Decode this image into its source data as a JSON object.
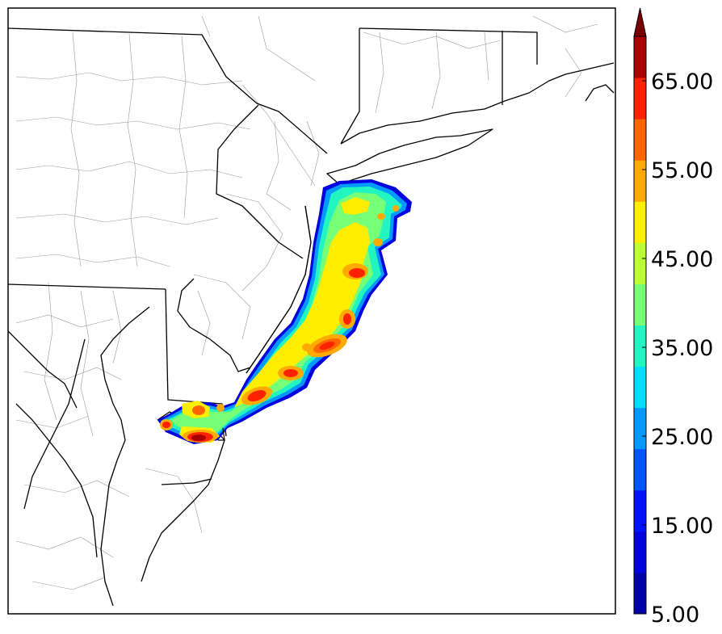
{
  "colorbar": {
    "min": 5.0,
    "max": 70.0,
    "step": 5.0,
    "extend": "max",
    "levels": [
      5,
      10,
      15,
      20,
      25,
      30,
      35,
      40,
      45,
      50,
      55,
      60,
      65,
      70
    ],
    "colors": [
      "#0000aa",
      "#0000dd",
      "#0011ff",
      "#0055ff",
      "#0099ff",
      "#00ddff",
      "#22f5c0",
      "#77ff77",
      "#bbff33",
      "#ffee00",
      "#ffaa00",
      "#ff6600",
      "#ff2200",
      "#aa0000"
    ],
    "extend_color": "#7a0000",
    "tick_labels": [
      "5.00",
      "15.00",
      "25.00",
      "35.00",
      "45.00",
      "55.00",
      "65.00"
    ],
    "tick_values": [
      5,
      15,
      25,
      35,
      45,
      55,
      65
    ]
  },
  "map": {
    "region": "Mid-Atlantic / Northeast US coast",
    "field_levels_present": [
      5,
      10,
      15,
      20,
      25,
      30,
      35,
      40,
      45,
      50,
      55,
      60,
      65
    ],
    "colors": {
      "state_border": "#000000",
      "county_border": "#9a9a9a",
      "frame": "#000000",
      "background": "#ffffff"
    }
  }
}
